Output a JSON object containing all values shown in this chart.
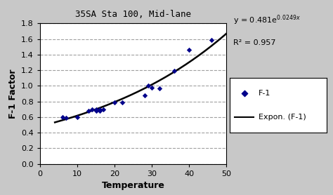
{
  "title": "35SA Sta 100, Mid-lane",
  "xlabel": "Temperature",
  "ylabel": "F-1 Factor",
  "r_squared": "R² = 0.957",
  "a": 0.481,
  "b": 0.0249,
  "scatter_x": [
    6,
    7,
    10,
    13,
    14,
    15,
    15,
    16,
    16,
    17,
    20,
    22,
    28,
    29,
    30,
    32,
    36,
    40,
    46
  ],
  "scatter_y": [
    0.6,
    0.59,
    0.6,
    0.68,
    0.7,
    0.68,
    0.7,
    0.68,
    0.7,
    0.7,
    0.79,
    0.79,
    0.88,
    1.0,
    0.98,
    0.97,
    1.19,
    1.46,
    1.59
  ],
  "xlim": [
    0,
    50
  ],
  "ylim": [
    0.0,
    1.8
  ],
  "yticks": [
    0.0,
    0.2,
    0.4,
    0.6,
    0.8,
    1.0,
    1.2,
    1.4,
    1.6,
    1.8
  ],
  "xticks": [
    0,
    10,
    20,
    30,
    40,
    50
  ],
  "scatter_color": "#00008B",
  "line_color": "#000000",
  "bg_color": "#C8C8C8",
  "plot_bg_color": "#FFFFFF",
  "grid_color": "#A0A0A0",
  "title_fontsize": 9,
  "label_fontsize": 9,
  "tick_fontsize": 8,
  "curve_x_start": 4,
  "curve_x_end": 50
}
